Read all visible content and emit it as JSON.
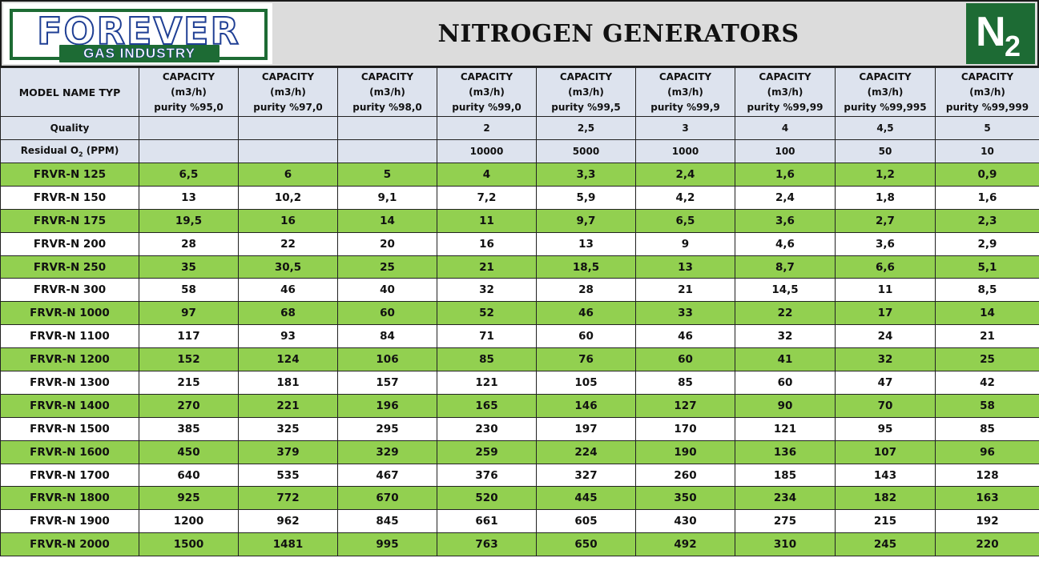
{
  "header": {
    "logo_name": "FOREVER",
    "logo_tagline": "GAS INDUSTRY",
    "title": "NITROGEN GENERATORS",
    "badge": {
      "main": "N",
      "subscript": "2"
    }
  },
  "colors": {
    "brand_green": "#1d6b34",
    "brand_blue": "#1f3f94",
    "row_green": "#92d050",
    "header_blue": "#dde3ee"
  },
  "table": {
    "first_header": "MODEL NAME TYP",
    "columns": [
      {
        "line1": "CAPACITY",
        "line2": "(m3/h)",
        "line3": "purity %95,0"
      },
      {
        "line1": "CAPACITY",
        "line2": "(m3/h)",
        "line3": "purity %97,0"
      },
      {
        "line1": "CAPACITY",
        "line2": "(m3/h)",
        "line3": "purity %98,0"
      },
      {
        "line1": "CAPACITY",
        "line2": "(m3/h)",
        "line3": "purity %99,0"
      },
      {
        "line1": "CAPACITY",
        "line2": "(m3/h)",
        "line3": "purity %99,5"
      },
      {
        "line1": "CAPACITY",
        "line2": "(m3/h)",
        "line3": "purity %99,9"
      },
      {
        "line1": "CAPACITY",
        "line2": "(m3/h)",
        "line3": "purity %99,99"
      },
      {
        "line1": "CAPACITY",
        "line2": "(m3/h)",
        "line3": "purity %99,995"
      },
      {
        "line1": "CAPACITY",
        "line2": "(m3/h)",
        "line3": "purity %99,999"
      }
    ],
    "spec_rows": [
      {
        "label": "Quality",
        "values": [
          "",
          "",
          "",
          "2",
          "2,5",
          "3",
          "4",
          "4,5",
          "5"
        ]
      },
      {
        "label_prefix": "Residual O",
        "label_sub": "2",
        "label_suffix": " (PPM)",
        "values": [
          "",
          "",
          "",
          "10000",
          "5000",
          "1000",
          "100",
          "50",
          "10"
        ]
      }
    ],
    "rows": [
      {
        "model": "FRVR-N 125",
        "values": [
          "6,5",
          "6",
          "5",
          "4",
          "3,3",
          "2,4",
          "1,6",
          "1,2",
          "0,9"
        ]
      },
      {
        "model": "FRVR-N 150",
        "values": [
          "13",
          "10,2",
          "9,1",
          "7,2",
          "5,9",
          "4,2",
          "2,4",
          "1,8",
          "1,6"
        ]
      },
      {
        "model": "FRVR-N 175",
        "values": [
          "19,5",
          "16",
          "14",
          "11",
          "9,7",
          "6,5",
          "3,6",
          "2,7",
          "2,3"
        ]
      },
      {
        "model": "FRVR-N 200",
        "values": [
          "28",
          "22",
          "20",
          "16",
          "13",
          "9",
          "4,6",
          "3,6",
          "2,9"
        ]
      },
      {
        "model": "FRVR-N 250",
        "values": [
          "35",
          "30,5",
          "25",
          "21",
          "18,5",
          "13",
          "8,7",
          "6,6",
          "5,1"
        ]
      },
      {
        "model": "FRVR-N 300",
        "values": [
          "58",
          "46",
          "40",
          "32",
          "28",
          "21",
          "14,5",
          "11",
          "8,5"
        ]
      },
      {
        "model": "FRVR-N 1000",
        "values": [
          "97",
          "68",
          "60",
          "52",
          "46",
          "33",
          "22",
          "17",
          "14"
        ]
      },
      {
        "model": "FRVR-N 1100",
        "values": [
          "117",
          "93",
          "84",
          "71",
          "60",
          "46",
          "32",
          "24",
          "21"
        ]
      },
      {
        "model": "FRVR-N 1200",
        "values": [
          "152",
          "124",
          "106",
          "85",
          "76",
          "60",
          "41",
          "32",
          "25"
        ]
      },
      {
        "model": "FRVR-N 1300",
        "values": [
          "215",
          "181",
          "157",
          "121",
          "105",
          "85",
          "60",
          "47",
          "42"
        ]
      },
      {
        "model": "FRVR-N 1400",
        "values": [
          "270",
          "221",
          "196",
          "165",
          "146",
          "127",
          "90",
          "70",
          "58"
        ]
      },
      {
        "model": "FRVR-N 1500",
        "values": [
          "385",
          "325",
          "295",
          "230",
          "197",
          "170",
          "121",
          "95",
          "85"
        ]
      },
      {
        "model": "FRVR-N 1600",
        "values": [
          "450",
          "379",
          "329",
          "259",
          "224",
          "190",
          "136",
          "107",
          "96"
        ]
      },
      {
        "model": "FRVR-N 1700",
        "values": [
          "640",
          "535",
          "467",
          "376",
          "327",
          "260",
          "185",
          "143",
          "128"
        ]
      },
      {
        "model": "FRVR-N 1800",
        "values": [
          "925",
          "772",
          "670",
          "520",
          "445",
          "350",
          "234",
          "182",
          "163"
        ]
      },
      {
        "model": "FRVR-N 1900",
        "values": [
          "1200",
          "962",
          "845",
          "661",
          "605",
          "430",
          "275",
          "215",
          "192"
        ]
      },
      {
        "model": "FRVR-N 2000",
        "values": [
          "1500",
          "1481",
          "995",
          "763",
          "650",
          "492",
          "310",
          "245",
          "220"
        ]
      }
    ]
  }
}
